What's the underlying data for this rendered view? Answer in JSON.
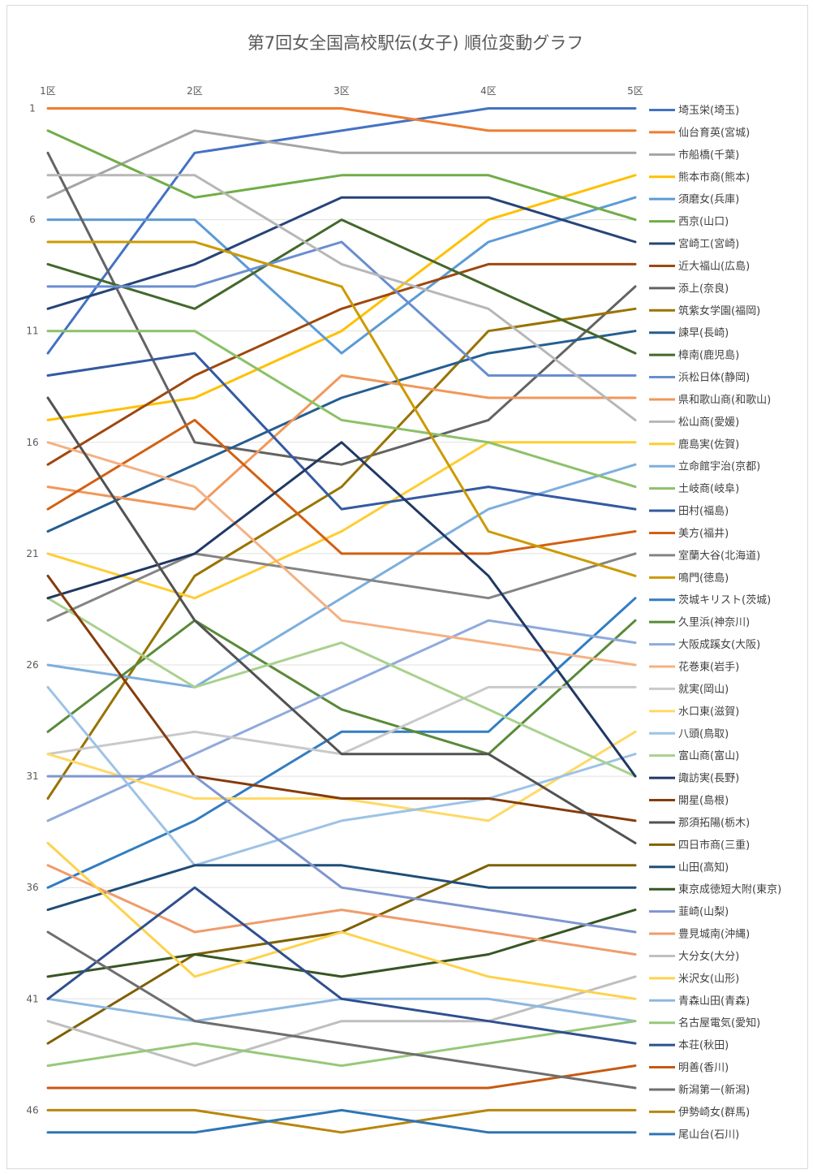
{
  "chart_data": {
    "type": "line",
    "title": "第7回女全国高校駅伝(女子) 順位変動グラフ",
    "x": [
      "1区",
      "2区",
      "3区",
      "4区",
      "5区"
    ],
    "xlabel": "",
    "ylabel": "",
    "y_ticks": [
      "1",
      "6",
      "11",
      "16",
      "21",
      "26",
      "31",
      "36",
      "41",
      "46"
    ],
    "ylim": [
      1,
      47
    ],
    "y_inverted": true,
    "grid": "horizontal",
    "legend_position": "right",
    "series": [
      {
        "name": "埼玉栄(埼玉)",
        "color": "#4472C4",
        "values": [
          12,
          3,
          2,
          1,
          1
        ]
      },
      {
        "name": "仙台育英(宮城)",
        "color": "#ED7D31",
        "values": [
          1,
          1,
          1,
          2,
          2
        ]
      },
      {
        "name": "市船橋(千葉)",
        "color": "#A5A5A5",
        "values": [
          5,
          2,
          3,
          3,
          3
        ]
      },
      {
        "name": "熊本市商(熊本)",
        "color": "#FFC000",
        "values": [
          15,
          14,
          11,
          6,
          4
        ]
      },
      {
        "name": "須磨女(兵庫)",
        "color": "#5B9BD5",
        "values": [
          6,
          6,
          12,
          7,
          5
        ]
      },
      {
        "name": "西京(山口)",
        "color": "#70AD47",
        "values": [
          2,
          5,
          4,
          4,
          6
        ]
      },
      {
        "name": "宮崎工(宮崎)",
        "color": "#264478",
        "values": [
          10,
          8,
          5,
          5,
          7
        ]
      },
      {
        "name": "近大福山(広島)",
        "color": "#9E480E",
        "values": [
          17,
          13,
          10,
          8,
          8
        ]
      },
      {
        "name": "添上(奈良)",
        "color": "#636363",
        "values": [
          3,
          16,
          17,
          15,
          9
        ]
      },
      {
        "name": "筑紫女学園(福岡)",
        "color": "#997300",
        "values": [
          32,
          22,
          18,
          11,
          10
        ]
      },
      {
        "name": "諫早(長崎)",
        "color": "#255E91",
        "values": [
          20,
          17,
          14,
          12,
          11
        ]
      },
      {
        "name": "樟南(鹿児島)",
        "color": "#43682B",
        "values": [
          8,
          10,
          6,
          9,
          12
        ]
      },
      {
        "name": "浜松日体(静岡)",
        "color": "#698ED0",
        "values": [
          9,
          9,
          7,
          13,
          13
        ]
      },
      {
        "name": "県和歌山商(和歌山)",
        "color": "#F1975A",
        "values": [
          18,
          19,
          13,
          14,
          14
        ]
      },
      {
        "name": "松山商(愛媛)",
        "color": "#B7B7B7",
        "values": [
          4,
          4,
          8,
          10,
          15
        ]
      },
      {
        "name": "鹿島実(佐賀)",
        "color": "#FFCD33",
        "values": [
          21,
          23,
          20,
          16,
          16
        ]
      },
      {
        "name": "立命館宇治(京都)",
        "color": "#7CAFDD",
        "values": [
          26,
          27,
          23,
          19,
          17
        ]
      },
      {
        "name": "土岐商(岐阜)",
        "color": "#8CC168",
        "values": [
          11,
          11,
          15,
          16,
          18
        ]
      },
      {
        "name": "田村(福島)",
        "color": "#335AA1",
        "values": [
          13,
          12,
          19,
          18,
          19
        ]
      },
      {
        "name": "美方(福井)",
        "color": "#D26012",
        "values": [
          19,
          15,
          21,
          21,
          20
        ]
      },
      {
        "name": "室蘭大谷(北海道)",
        "color": "#848484",
        "values": [
          24,
          21,
          22,
          23,
          21
        ]
      },
      {
        "name": "鳴門(徳島)",
        "color": "#CC9A00",
        "values": [
          7,
          7,
          9,
          20,
          22
        ]
      },
      {
        "name": "茨城キリスト(茨城)",
        "color": "#327DC2",
        "values": [
          36,
          33,
          29,
          29,
          23
        ]
      },
      {
        "name": "久里浜(神奈川)",
        "color": "#5A8A39",
        "values": [
          29,
          24,
          28,
          30,
          24
        ]
      },
      {
        "name": "大阪成蹊女(大阪)",
        "color": "#8FAADC",
        "values": [
          33,
          30,
          27,
          24,
          25
        ]
      },
      {
        "name": "花巻東(岩手)",
        "color": "#F4B183",
        "values": [
          16,
          18,
          24,
          25,
          26
        ]
      },
      {
        "name": "就実(岡山)",
        "color": "#C9C9C9",
        "values": [
          30,
          29,
          30,
          27,
          27
        ]
      },
      {
        "name": "水口東(滋賀)",
        "color": "#FFD966",
        "values": [
          30,
          32,
          32,
          33,
          29
        ]
      },
      {
        "name": "八頭(鳥取)",
        "color": "#9DC3E6",
        "values": [
          27,
          35,
          33,
          32,
          30
        ]
      },
      {
        "name": "富山商(富山)",
        "color": "#A9D18E",
        "values": [
          23,
          27,
          25,
          28,
          31
        ]
      },
      {
        "name": "諏訪実(長野)",
        "color": "#203864",
        "values": [
          23,
          21,
          16,
          22,
          31
        ]
      },
      {
        "name": "開星(島根)",
        "color": "#843C0C",
        "values": [
          22,
          31,
          32,
          32,
          33
        ]
      },
      {
        "name": "那須拓陽(栃木)",
        "color": "#525252",
        "values": [
          14,
          24,
          30,
          30,
          34
        ]
      },
      {
        "name": "四日市商(三重)",
        "color": "#7F6000",
        "values": [
          43,
          39,
          38,
          35,
          35
        ]
      },
      {
        "name": "山田(高知)",
        "color": "#1F4E79",
        "values": [
          37,
          35,
          35,
          36,
          36
        ]
      },
      {
        "name": "東京成徳短大附(東京)",
        "color": "#375623",
        "values": [
          40,
          39,
          40,
          39,
          37
        ]
      },
      {
        "name": "韮崎(山梨)",
        "color": "#7F96CF",
        "values": [
          31,
          31,
          36,
          37,
          38
        ]
      },
      {
        "name": "豊見城南(沖縄)",
        "color": "#EF9C6C",
        "values": [
          35,
          38,
          37,
          38,
          39
        ]
      },
      {
        "name": "大分女(大分)",
        "color": "#BFBFBF",
        "values": [
          42,
          44,
          42,
          42,
          40
        ]
      },
      {
        "name": "米沢女(山形)",
        "color": "#FFD24C",
        "values": [
          34,
          40,
          38,
          40,
          41
        ]
      },
      {
        "name": "青森山田(青森)",
        "color": "#8DB8E0",
        "values": [
          41,
          42,
          41,
          41,
          42
        ]
      },
      {
        "name": "名古屋電気(愛知)",
        "color": "#97C879",
        "values": [
          44,
          43,
          44,
          43,
          42
        ]
      },
      {
        "name": "本荘(秋田)",
        "color": "#2F4F8F",
        "values": [
          41,
          36,
          41,
          42,
          43
        ]
      },
      {
        "name": "明善(香川)",
        "color": "#C55A11",
        "values": [
          45,
          45,
          45,
          45,
          44
        ]
      },
      {
        "name": "新潟第一(新潟)",
        "color": "#6E6E6E",
        "values": [
          38,
          42,
          43,
          44,
          45
        ]
      },
      {
        "name": "伊勢崎女(群馬)",
        "color": "#B8860B",
        "values": [
          46,
          46,
          47,
          46,
          46
        ]
      },
      {
        "name": "尾山台(石川)",
        "color": "#2E75B6",
        "values": [
          47,
          47,
          46,
          47,
          47
        ]
      }
    ]
  }
}
